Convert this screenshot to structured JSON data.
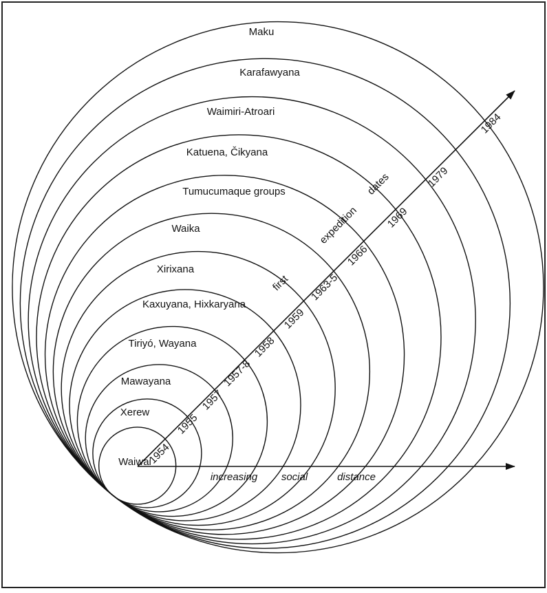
{
  "groups": [
    "Waiwai",
    "Xerew",
    "Mawayana",
    "Tiriyó, Wayana",
    "Kaxuyana, Hixkaryana",
    "Xirixana",
    "Waika",
    "Tumucumaque groups",
    "Katuena, Čikyana",
    "Waimiri-Atroari",
    "Karafawyana",
    "Maku"
  ],
  "dates": [
    "1954",
    "1955",
    "1957",
    "1957-8",
    "1958",
    "1959",
    "1963-5",
    "1966",
    "1969",
    "1979",
    "1984"
  ],
  "diagonal_axis": [
    "first",
    "expedition",
    "dates"
  ],
  "horizontal_axis": [
    "increasing",
    "social",
    "distance"
  ]
}
